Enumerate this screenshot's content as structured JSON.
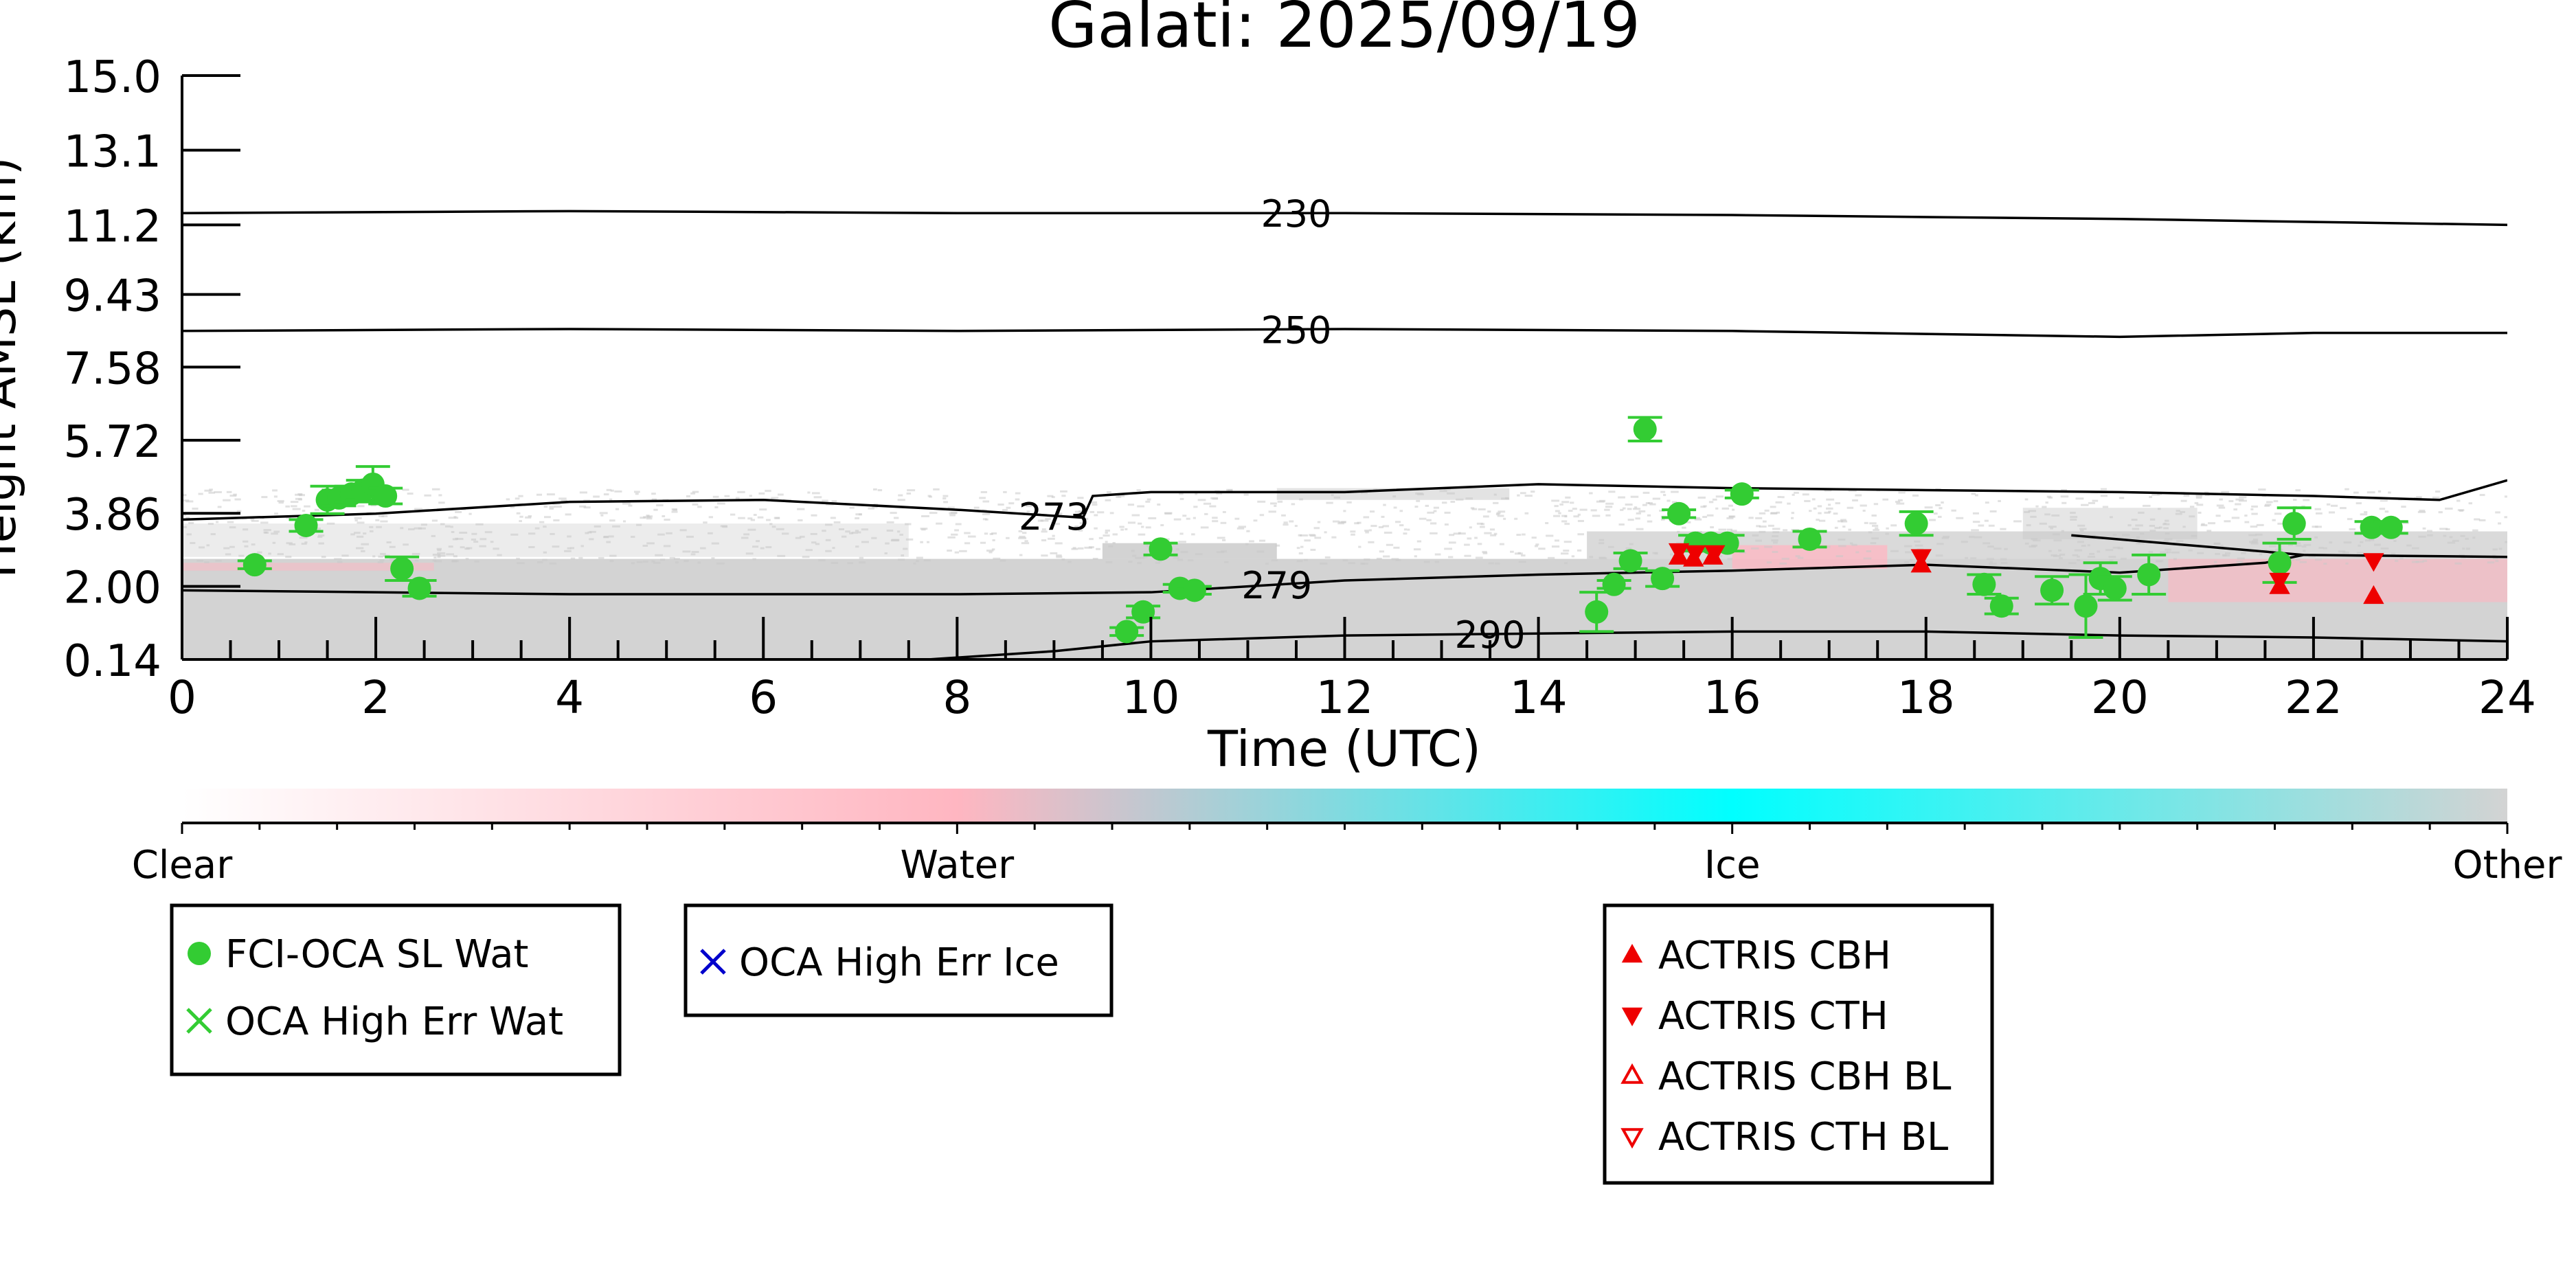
{
  "chart_data": {
    "type": "scatter",
    "title": "Galati: 2025/09/19",
    "xlabel": "Time (UTC)",
    "ylabel": "Height AMSL (km)",
    "xlim": [
      0,
      24
    ],
    "ylim": [
      0.14,
      15.0
    ],
    "x_ticks": [
      "0",
      "2",
      "4",
      "6",
      "8",
      "10",
      "12",
      "14",
      "16",
      "18",
      "20",
      "22",
      "24"
    ],
    "y_ticks": [
      "0.14",
      "2.00",
      "3.86",
      "5.72",
      "7.58",
      "9.43",
      "11.2",
      "13.1",
      "15.0"
    ],
    "colorbar": {
      "labels": [
        "Clear",
        "Water",
        "Ice",
        "Other"
      ],
      "colors": [
        "#ffffff",
        "#ffb6c1",
        "#00ffff",
        "#d3d3d3"
      ]
    },
    "background_colors": {
      "other": "#d3d3d3",
      "water": "#ffb6c1",
      "sparse": "#c8c8c8"
    },
    "isotherms": [
      {
        "label": "230",
        "x": [
          0,
          4,
          8,
          12,
          16,
          20,
          24
        ],
        "y": [
          11.5,
          11.55,
          11.5,
          11.5,
          11.45,
          11.35,
          11.2
        ]
      },
      {
        "label": "250",
        "x": [
          0,
          4,
          8,
          12,
          16,
          20,
          22,
          24
        ],
        "y": [
          8.5,
          8.55,
          8.5,
          8.55,
          8.5,
          8.35,
          8.45,
          8.45
        ]
      },
      {
        "label": "273",
        "x": [
          0,
          2,
          4,
          6,
          8,
          9.3,
          9.4,
          10,
          12,
          14,
          16,
          18,
          20,
          22,
          23.3,
          24
        ],
        "y": [
          3.7,
          3.85,
          4.15,
          4.2,
          3.95,
          3.75,
          4.3,
          4.4,
          4.4,
          4.6,
          4.5,
          4.45,
          4.4,
          4.3,
          4.2,
          4.7
        ]
      },
      {
        "label": "279",
        "x": [
          0,
          4,
          8,
          10,
          12,
          14,
          16,
          18,
          20,
          21.5,
          21.9,
          19.5,
          21.9,
          24
        ],
        "y": [
          1.9,
          1.8,
          1.8,
          1.85,
          2.15,
          2.3,
          2.4,
          2.55,
          2.35,
          2.6,
          2.8,
          3.3,
          2.8,
          2.75
        ]
      },
      {
        "label": "290",
        "x": [
          7.7,
          9,
          10,
          12,
          14,
          16,
          18,
          20,
          22,
          24
        ],
        "y": [
          0.14,
          0.35,
          0.6,
          0.75,
          0.8,
          0.85,
          0.85,
          0.75,
          0.7,
          0.6
        ]
      }
    ],
    "series": [
      {
        "name": "FCI-OCA SL Wat",
        "color": "#33cc33",
        "marker": "circle",
        "points": [
          {
            "x": 0.75,
            "y": 2.55,
            "err": 0.1
          },
          {
            "x": 1.28,
            "y": 3.55,
            "err": 0.15
          },
          {
            "x": 1.5,
            "y": 4.2,
            "err": 0.35
          },
          {
            "x": 1.62,
            "y": 4.25,
            "err": 0.2
          },
          {
            "x": 1.75,
            "y": 4.35,
            "err": 0.2
          },
          {
            "x": 1.87,
            "y": 4.45,
            "err": 0.25
          },
          {
            "x": 1.97,
            "y": 4.6,
            "err": 0.45
          },
          {
            "x": 2.1,
            "y": 4.3,
            "err": 0.2
          },
          {
            "x": 2.27,
            "y": 2.45,
            "err": 0.3
          },
          {
            "x": 2.45,
            "y": 1.95,
            "err": 0.2
          },
          {
            "x": 9.75,
            "y": 0.85,
            "err": 0.1
          },
          {
            "x": 9.92,
            "y": 1.35,
            "err": 0.15
          },
          {
            "x": 10.1,
            "y": 2.95,
            "err": 0.15
          },
          {
            "x": 10.3,
            "y": 1.95,
            "err": 0.1
          },
          {
            "x": 10.45,
            "y": 1.9,
            "err": 0.1
          },
          {
            "x": 14.6,
            "y": 1.35,
            "err": 0.5
          },
          {
            "x": 14.78,
            "y": 2.05,
            "err": 0.1
          },
          {
            "x": 14.95,
            "y": 2.65,
            "err": 0.2
          },
          {
            "x": 15.1,
            "y": 6.0,
            "err": 0.3
          },
          {
            "x": 15.28,
            "y": 2.2,
            "err": 0.2
          },
          {
            "x": 15.45,
            "y": 3.85,
            "err": 0.1
          },
          {
            "x": 15.62,
            "y": 3.1,
            "err": 0.2
          },
          {
            "x": 15.78,
            "y": 3.1,
            "err": 0.2
          },
          {
            "x": 15.95,
            "y": 3.1,
            "err": 0.2
          },
          {
            "x": 16.1,
            "y": 4.35,
            "err": 0.1
          },
          {
            "x": 16.8,
            "y": 3.2,
            "err": 0.2
          },
          {
            "x": 17.9,
            "y": 3.6,
            "err": 0.3
          },
          {
            "x": 18.6,
            "y": 2.05,
            "err": 0.25
          },
          {
            "x": 18.78,
            "y": 1.5,
            "err": 0.2
          },
          {
            "x": 19.3,
            "y": 1.9,
            "err": 0.35
          },
          {
            "x": 19.65,
            "y": 1.5,
            "err": 0.8
          },
          {
            "x": 19.8,
            "y": 2.2,
            "err": 0.4
          },
          {
            "x": 19.95,
            "y": 1.95,
            "err": 0.3
          },
          {
            "x": 20.3,
            "y": 2.3,
            "err": 0.5
          },
          {
            "x": 21.65,
            "y": 2.6,
            "err": 0.5
          },
          {
            "x": 21.8,
            "y": 3.6,
            "err": 0.4
          },
          {
            "x": 22.6,
            "y": 3.5,
            "err": 0.15
          },
          {
            "x": 22.8,
            "y": 3.5,
            "err": 0.15
          }
        ]
      },
      {
        "name": "ACTRIS CBH",
        "color": "#ee0000",
        "marker": "triangle-up",
        "points": [
          {
            "x": 15.45,
            "y": 2.75
          },
          {
            "x": 15.6,
            "y": 2.7
          },
          {
            "x": 15.8,
            "y": 2.75
          },
          {
            "x": 17.95,
            "y": 2.55
          },
          {
            "x": 21.65,
            "y": 2.0
          },
          {
            "x": 22.62,
            "y": 1.75
          }
        ]
      },
      {
        "name": "ACTRIS CTH",
        "color": "#ee0000",
        "marker": "triangle-down",
        "points": [
          {
            "x": 15.45,
            "y": 2.9
          },
          {
            "x": 15.62,
            "y": 2.85
          },
          {
            "x": 15.82,
            "y": 2.85
          },
          {
            "x": 17.95,
            "y": 2.75
          },
          {
            "x": 21.65,
            "y": 2.15
          },
          {
            "x": 22.62,
            "y": 2.65
          }
        ]
      }
    ],
    "legends": [
      {
        "placement": "bottom-left",
        "entries": [
          {
            "label": "FCI-OCA SL Wat",
            "marker": "circle",
            "color": "#33cc33"
          },
          {
            "label": "OCA High Err Wat",
            "marker": "x",
            "color": "#33cc33"
          }
        ]
      },
      {
        "placement": "bottom-center-left",
        "entries": [
          {
            "label": "OCA High Err Ice",
            "marker": "x",
            "color": "#0000cc"
          }
        ]
      },
      {
        "placement": "bottom-center-right",
        "entries": [
          {
            "label": "ACTRIS CBH",
            "marker": "triangle-up",
            "color": "#ee0000"
          },
          {
            "label": "ACTRIS CTH",
            "marker": "triangle-down",
            "color": "#ee0000"
          },
          {
            "label": "ACTRIS CBH BL",
            "marker": "triangle-up-open",
            "color": "#ee0000"
          },
          {
            "label": "ACTRIS CTH BL",
            "marker": "triangle-down-open",
            "color": "#ee0000"
          }
        ]
      }
    ]
  }
}
